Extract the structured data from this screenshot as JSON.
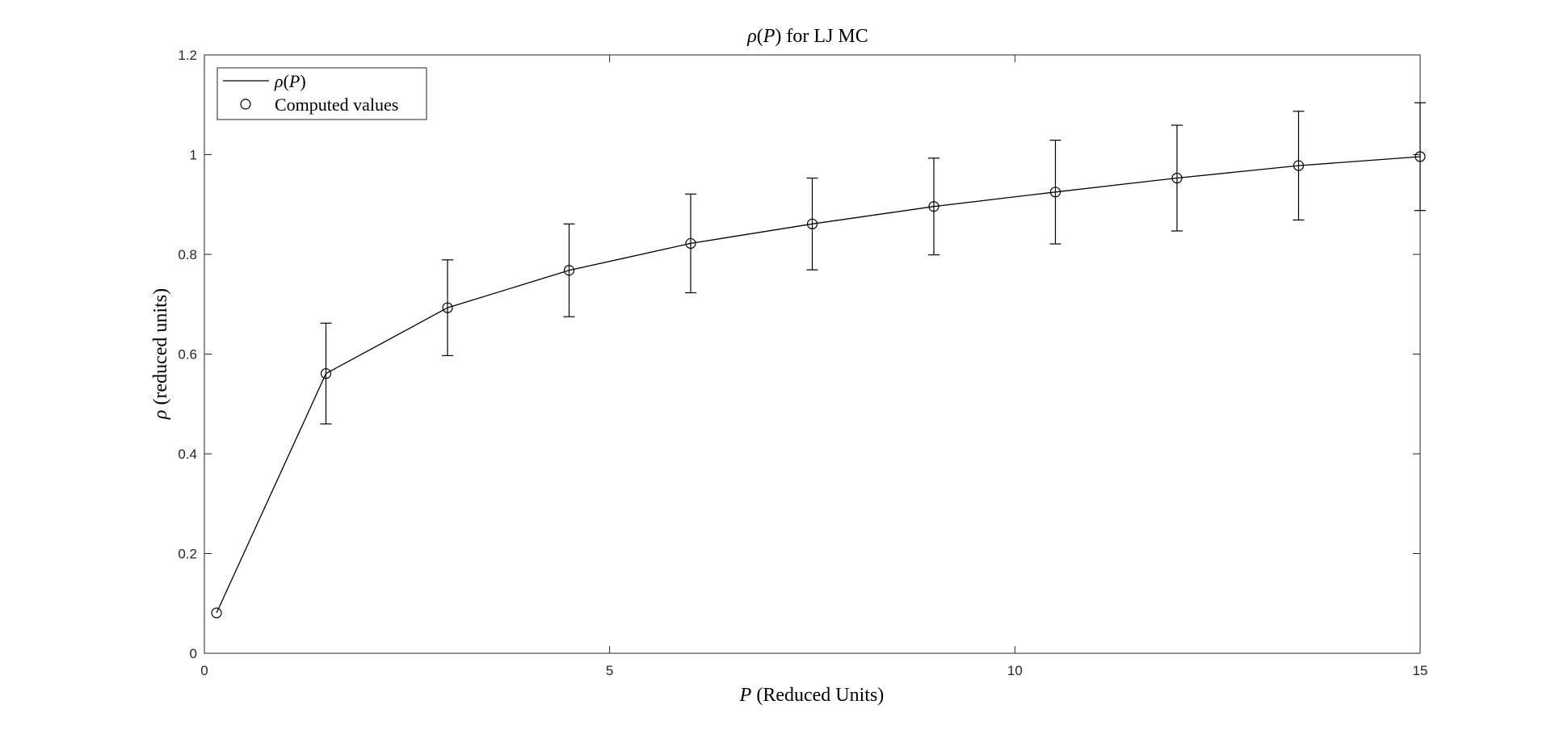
{
  "chart_data": {
    "type": "line",
    "title": {
      "prefix": "",
      "rho": "ρ",
      "open": "(",
      "var": "P",
      "close": ")",
      "suffix": " for LJ MC"
    },
    "xlabel": {
      "var": "P",
      "text": " (Reduced Units)"
    },
    "ylabel": {
      "rho": "ρ",
      "text": " (reduced units)"
    },
    "xlim": [
      0,
      15
    ],
    "ylim": [
      0,
      1.2
    ],
    "xticks": [
      0,
      5,
      10,
      15
    ],
    "xtick_labels": [
      "0",
      "5",
      "10",
      "15"
    ],
    "yticks": [
      0,
      0.2,
      0.4,
      0.6,
      0.8,
      1,
      1.2
    ],
    "ytick_labels": [
      "0",
      "0.2",
      "0.4",
      "0.6",
      "0.8",
      "1",
      "1.2"
    ],
    "grid": false,
    "legend_position": "top-left",
    "series": [
      {
        "name": "line",
        "legend": {
          "rho": "ρ",
          "open": "(",
          "var": "P",
          "close": ")"
        },
        "style": "solid line",
        "x": [
          0.15,
          1.5,
          3,
          4.5,
          6,
          7.5,
          9,
          10.5,
          12,
          13.5,
          15
        ],
        "y": [
          0.081,
          0.561,
          0.693,
          0.768,
          0.822,
          0.861,
          0.896,
          0.925,
          0.953,
          0.978,
          0.996
        ]
      },
      {
        "name": "Computed values",
        "style": "open circle markers with error bars",
        "x": [
          0.15,
          1.5,
          3,
          4.5,
          6,
          7.5,
          9,
          10.5,
          12,
          13.5,
          15
        ],
        "y": [
          0.081,
          0.561,
          0.693,
          0.768,
          0.822,
          0.861,
          0.896,
          0.925,
          0.953,
          0.978,
          0.996
        ],
        "error": [
          0,
          0.101,
          0.096,
          0.093,
          0.099,
          0.092,
          0.097,
          0.104,
          0.106,
          0.109,
          0.108
        ]
      }
    ],
    "colors": {
      "line": "#000000",
      "axes": "#262626",
      "background": "#ffffff"
    }
  }
}
